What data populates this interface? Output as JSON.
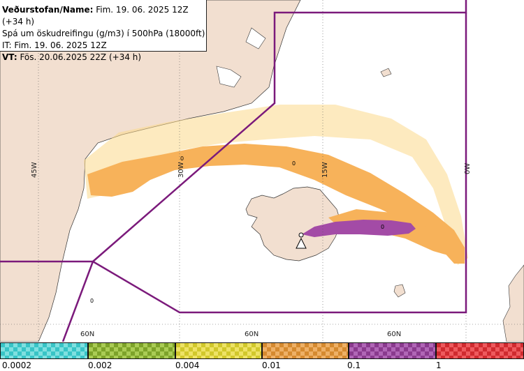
{
  "info": {
    "line1_prefix": "Veðurstofan/Name:",
    "line1_value": " Fim. 19. 06. 2025 12Z (+34 h)",
    "line2": "Spá um öskudreifingu (g/m3) í 500hPa (18000ft)",
    "line3": "IT: Fim. 19. 06. 2025 12Z",
    "line4_prefix": "VT:",
    "line4_value": " Fös. 20.06.2025 22Z (+34 h)"
  },
  "gridlabels": {
    "lon_45w": "45W",
    "lon_30w": "30W",
    "lon_15w": "15W",
    "lon_0w": "0W",
    "lat_a": "60N",
    "lat_b": "60N",
    "lat_c": "60N"
  },
  "contour_labels": [
    "0",
    "0",
    "0",
    "0"
  ],
  "legend": {
    "labels": [
      "0.0002",
      "0.002",
      "0.004",
      "0.01",
      "0.1",
      "1"
    ],
    "colors": [
      "#38c4c6",
      "#7da32a",
      "#d1c82c",
      "#d58a30",
      "#8a3a8e",
      "#d02a2f"
    ],
    "colors_alt": [
      "#7fe0e0",
      "#aacc55",
      "#eee366",
      "#eeb066",
      "#b066b6",
      "#ee5a5e"
    ]
  },
  "colors": {
    "land": "#f2dfd0",
    "boundary": "#7b1a7b",
    "ash_low": "#f7b25a",
    "ash_light": "#fbd98a",
    "ash_high": "#a34ba6"
  }
}
